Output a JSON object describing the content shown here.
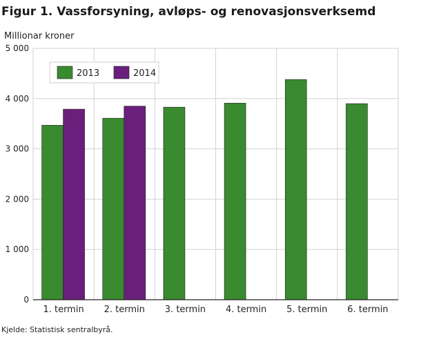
{
  "figure_title": "Figur 1. Vassforsyning, avløps- og renovasjonsverksemd",
  "source": "Kjelde: Statistisk sentralbyrå.",
  "chart_data": {
    "type": "bar",
    "title": "Figur 1. Vassforsyning, avløps- og renovasjonsverksemd",
    "ylabel": "Millionar kroner",
    "xlabel": "",
    "categories": [
      "1. termin",
      "2. termin",
      "3. termin",
      "4. termin",
      "5. termin",
      "6. termin"
    ],
    "series": [
      {
        "name": "2013",
        "color": "#3a8a2f",
        "values": [
          3470,
          3610,
          3830,
          3910,
          4380,
          3900
        ]
      },
      {
        "name": "2014",
        "color": "#6a1f7c",
        "values": [
          3790,
          3850,
          null,
          null,
          null,
          null
        ]
      }
    ],
    "ylim": [
      0,
      5000
    ],
    "yticks": [
      0,
      1000,
      2000,
      3000,
      4000,
      5000
    ],
    "ytick_labels": [
      "0",
      "1 000",
      "2 000",
      "3 000",
      "4 000",
      "5 000"
    ],
    "grid": true,
    "legend_position": "top-left"
  }
}
